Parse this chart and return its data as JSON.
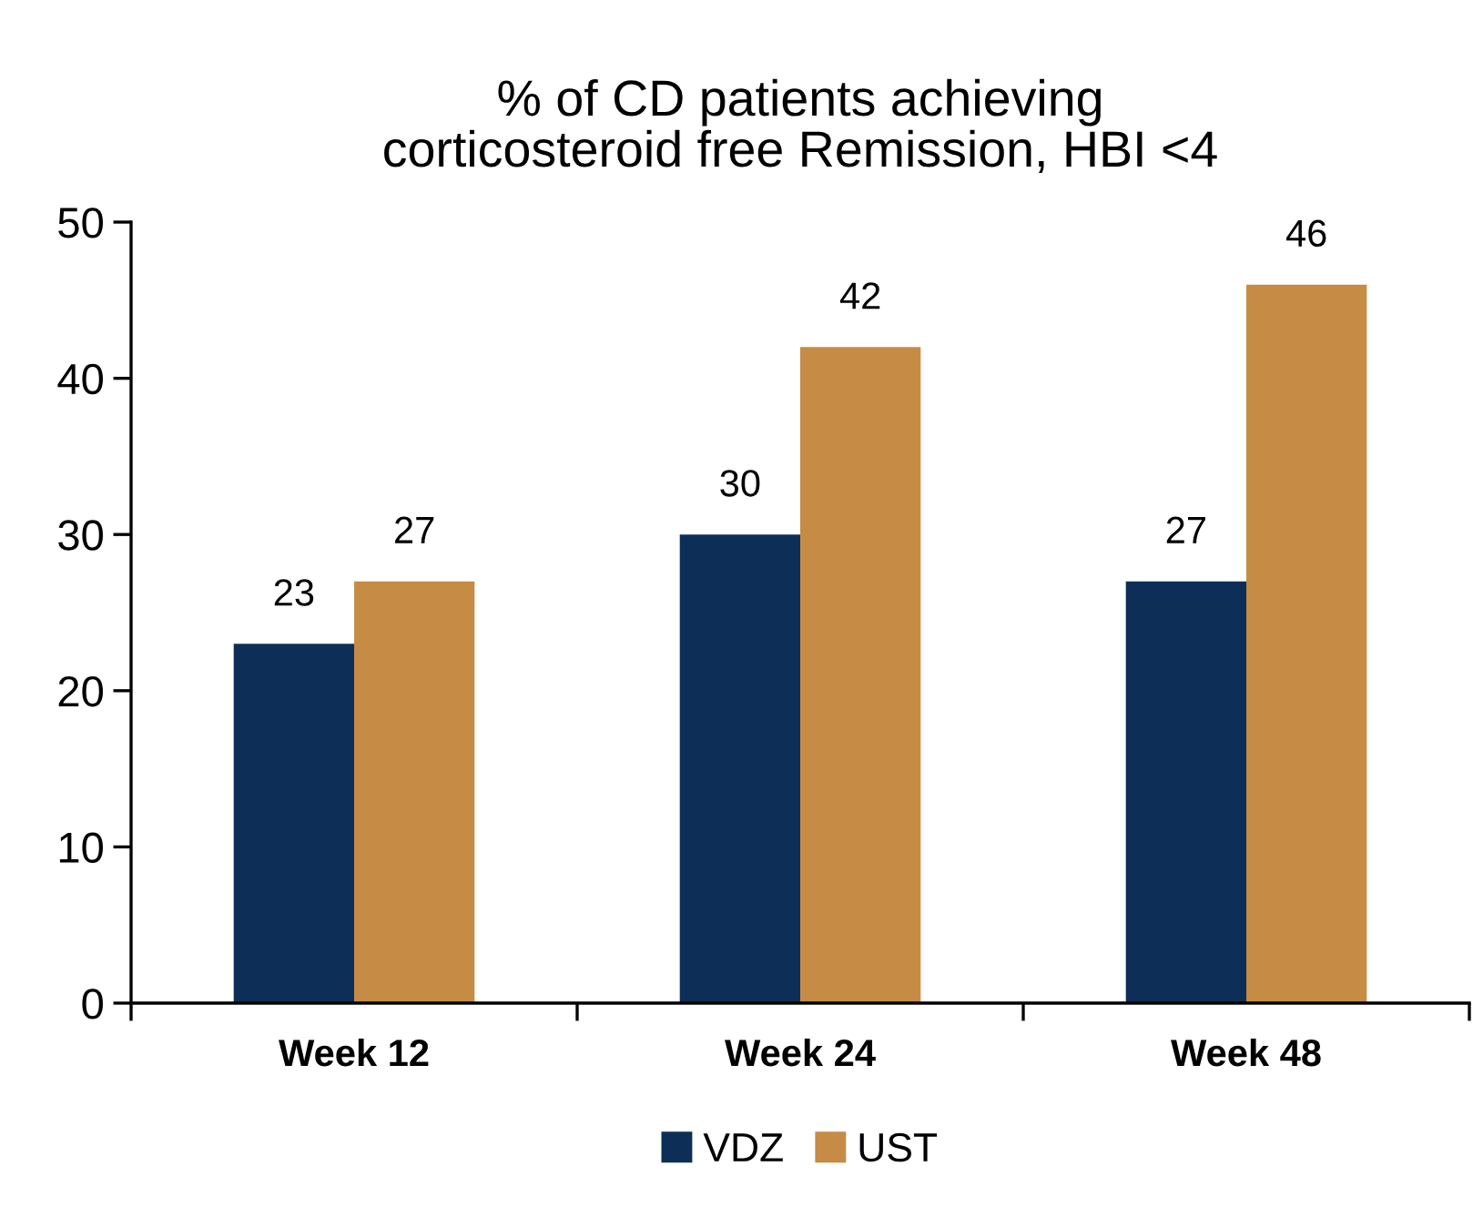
{
  "chart_data": {
    "type": "bar",
    "title": "% of CD patients achieving\ncorticosteroid free Remission, HBI <4",
    "categories": [
      "Week 12",
      "Week 24",
      "Week 48"
    ],
    "series": [
      {
        "name": "VDZ",
        "color": "#0d2f57",
        "values": [
          23,
          30,
          27
        ]
      },
      {
        "name": "UST",
        "color": "#c68b45",
        "values": [
          27,
          42,
          46
        ]
      }
    ],
    "ylim": [
      0,
      50
    ],
    "yticks": [
      0,
      10,
      20,
      30,
      40,
      50
    ],
    "grid": false,
    "legend": "bottom",
    "data_labels": true
  }
}
